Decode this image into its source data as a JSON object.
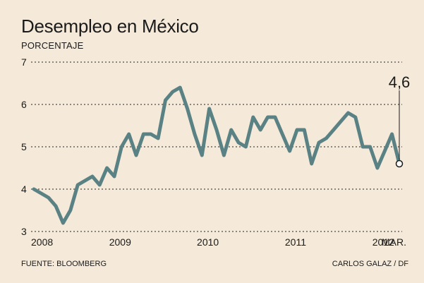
{
  "title": "Desempleo en México",
  "subtitle": "PORCENTAJE",
  "source": "FUENTE: BLOOMBERG",
  "credit": "CARLOS GALAZ / DF",
  "colors": {
    "background": "#f5ead9",
    "line": "#5a8285",
    "grid": "#222222",
    "marker_fill": "#ffffff"
  },
  "chart_data": {
    "type": "line",
    "title": "Desempleo en México",
    "ylabel": "PORCENTAJE",
    "ylim": [
      3,
      7
    ],
    "yticks": [
      3,
      4,
      5,
      6,
      7
    ],
    "ytick_labels": [
      "3",
      "4",
      "5",
      "6",
      "7"
    ],
    "grid": "horizontal dashed",
    "x_tick_labels": [
      "2008",
      "2009",
      "2010",
      "2011",
      "2012",
      "MAR."
    ],
    "x_tick_positions": [
      0,
      12,
      24,
      36,
      48,
      50
    ],
    "last_point_label": "4,6",
    "series": [
      {
        "values": [
          4.0,
          3.9,
          3.8,
          3.6,
          3.2,
          3.5,
          4.1,
          4.2,
          4.3,
          4.1,
          4.5,
          4.3,
          5.0,
          5.3,
          4.8,
          5.3,
          5.3,
          5.2,
          6.1,
          6.3,
          6.4,
          5.9,
          5.3,
          4.8,
          5.9,
          5.4,
          4.8,
          5.4,
          5.1,
          5.0,
          5.7,
          5.4,
          5.7,
          5.7,
          5.3,
          4.9,
          5.4,
          5.4,
          4.6,
          5.1,
          5.2,
          5.4,
          5.6,
          5.8,
          5.7,
          5.0,
          5.0,
          4.5,
          4.9,
          5.3,
          4.6
        ]
      }
    ]
  }
}
